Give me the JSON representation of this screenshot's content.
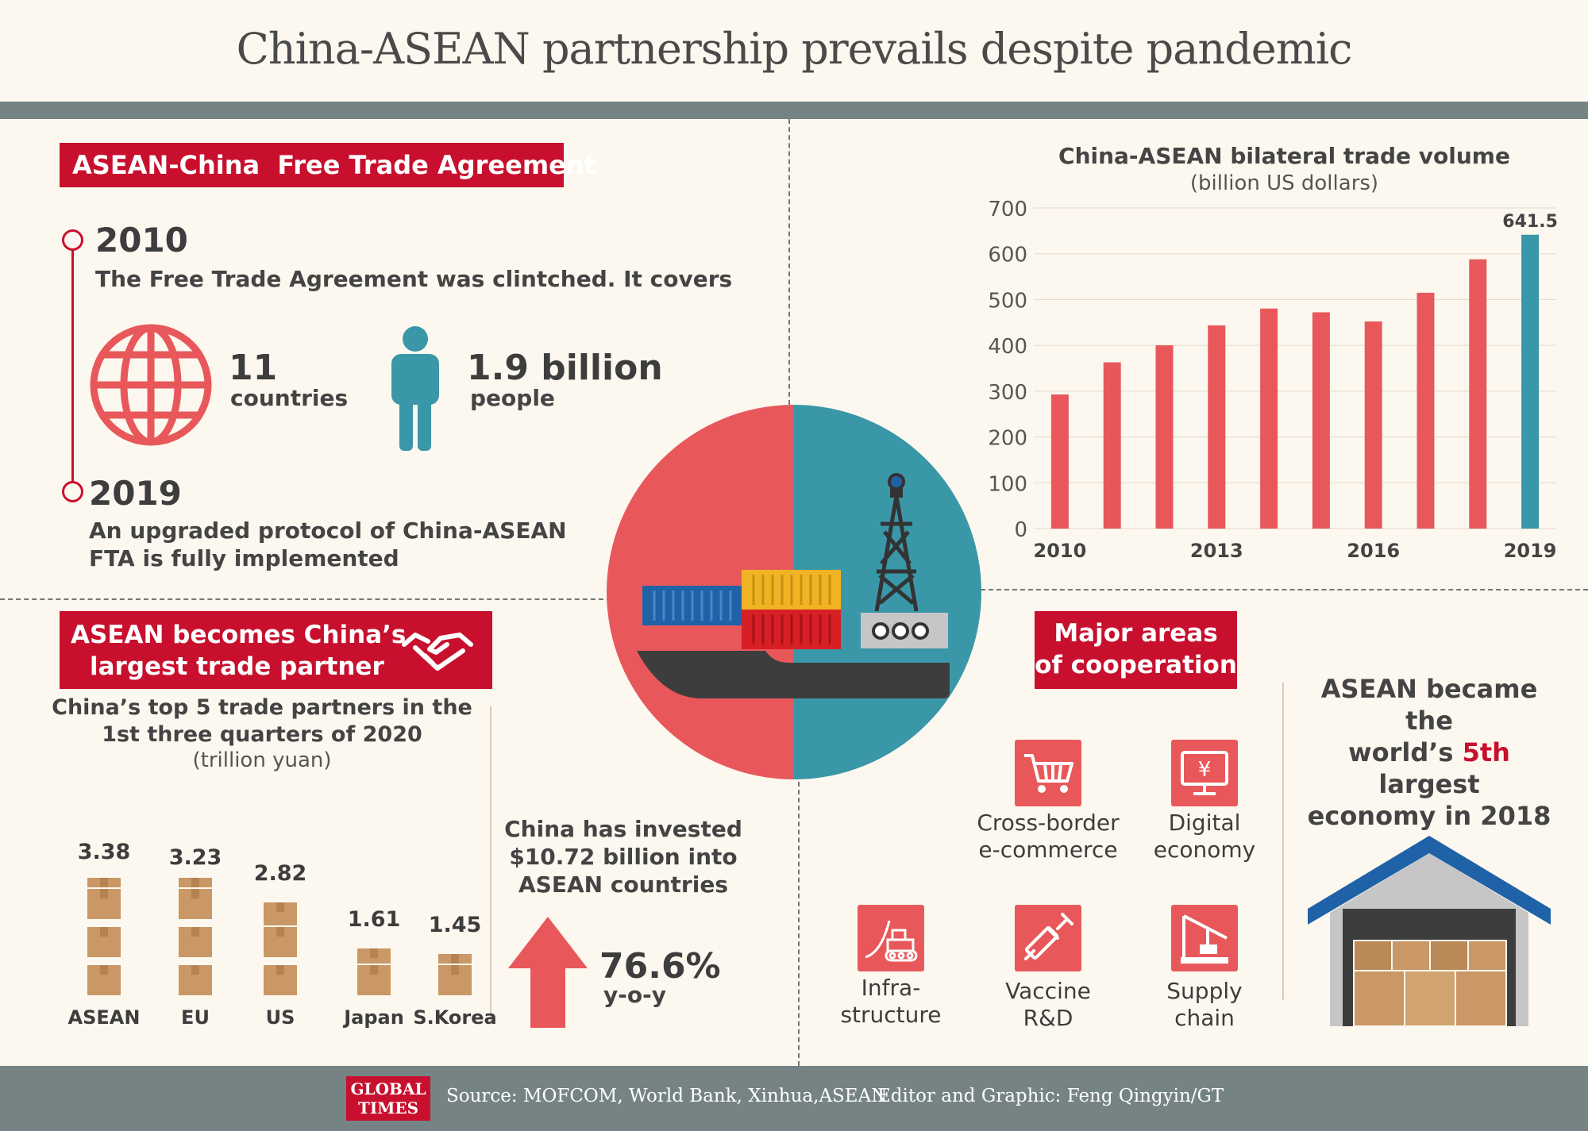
{
  "title": "China-ASEAN partnership prevails despite pandemic",
  "fta": {
    "heading": "ASEAN-China  Free Trade Agreement",
    "year1": "2010",
    "desc1": "The Free Trade Agreement was clintched. It covers",
    "countries_value": "11",
    "countries_label": "countries",
    "people_value": "1.9 billion",
    "people_label": "people",
    "year2": "2019",
    "desc2_line1": "An upgraded protocol of China-ASEAN",
    "desc2_line2": "FTA is fully implemented"
  },
  "partner": {
    "heading_line1": "ASEAN becomes China’s",
    "heading_line2": "largest trade partner",
    "sub_line1": "China’s top 5 trade partners in the",
    "sub_line2": "1st three quarters of 2020",
    "unit": "(trillion yuan)"
  },
  "investment": {
    "line1": "China has invested",
    "line2": "$10.72 billion into",
    "line3": "ASEAN countries",
    "growth": "76.6%",
    "growth_label": "y-o-y"
  },
  "cooperation": {
    "heading_line1": "Major areas",
    "heading_line2": "of cooperation",
    "items": [
      {
        "label": "Cross-border\ne-commerce",
        "icon": "shopping-cart-icon"
      },
      {
        "label": "Digital\neconomy",
        "icon": "yuan-monitor-icon"
      },
      {
        "label": "Infra-\nstructure",
        "icon": "bulldozer-icon"
      },
      {
        "label": "Vaccine\nR&D",
        "icon": "syringe-icon"
      },
      {
        "label": "Supply\nchain",
        "icon": "crane-icon"
      }
    ]
  },
  "economy": {
    "line1": "ASEAN became the",
    "line2_pre": "world’s ",
    "line2_highlight": "5th",
    "line2_post": " largest",
    "line3": "economy in 2018"
  },
  "footer": {
    "logo_line1": "GLOBAL",
    "logo_line2": "TIMES",
    "source": "Source: MOFCOM, World Bank, Xinhua,ASEAN",
    "editor": "Editor and Graphic: Feng Qingyin/GT"
  },
  "colors": {
    "red_bar": "#e8585b",
    "teal_bar": "#3a97a8",
    "heading_red": "#c8102e",
    "highlight": "#c8102e"
  },
  "chart_data": [
    {
      "type": "bar",
      "title": "China-ASEAN bilateral trade volume",
      "subtitle": "(billion US dollars)",
      "x": [
        2010,
        2011,
        2012,
        2013,
        2014,
        2015,
        2016,
        2017,
        2018,
        2019
      ],
      "x_tick_labels": [
        "2010",
        "2013",
        "2016",
        "2019"
      ],
      "values": [
        292.8,
        362.9,
        400.1,
        443.6,
        480.4,
        472.2,
        452.2,
        514.8,
        587.9,
        641.5
      ],
      "data_labels": [
        {
          "index": 9,
          "text": "641.5"
        }
      ],
      "highlight_index": 9,
      "ylim": [
        0,
        700
      ],
      "yticks": [
        0,
        100,
        200,
        300,
        400,
        500,
        600,
        700
      ],
      "grid": true
    },
    {
      "type": "bar",
      "title": "China’s top 5 trade partners in the 1st three quarters of 2020",
      "subtitle": "(trillion yuan)",
      "categories": [
        "ASEAN",
        "EU",
        "US",
        "Japan",
        "S.Korea"
      ],
      "values": [
        3.38,
        3.23,
        2.82,
        1.61,
        1.45
      ]
    }
  ]
}
